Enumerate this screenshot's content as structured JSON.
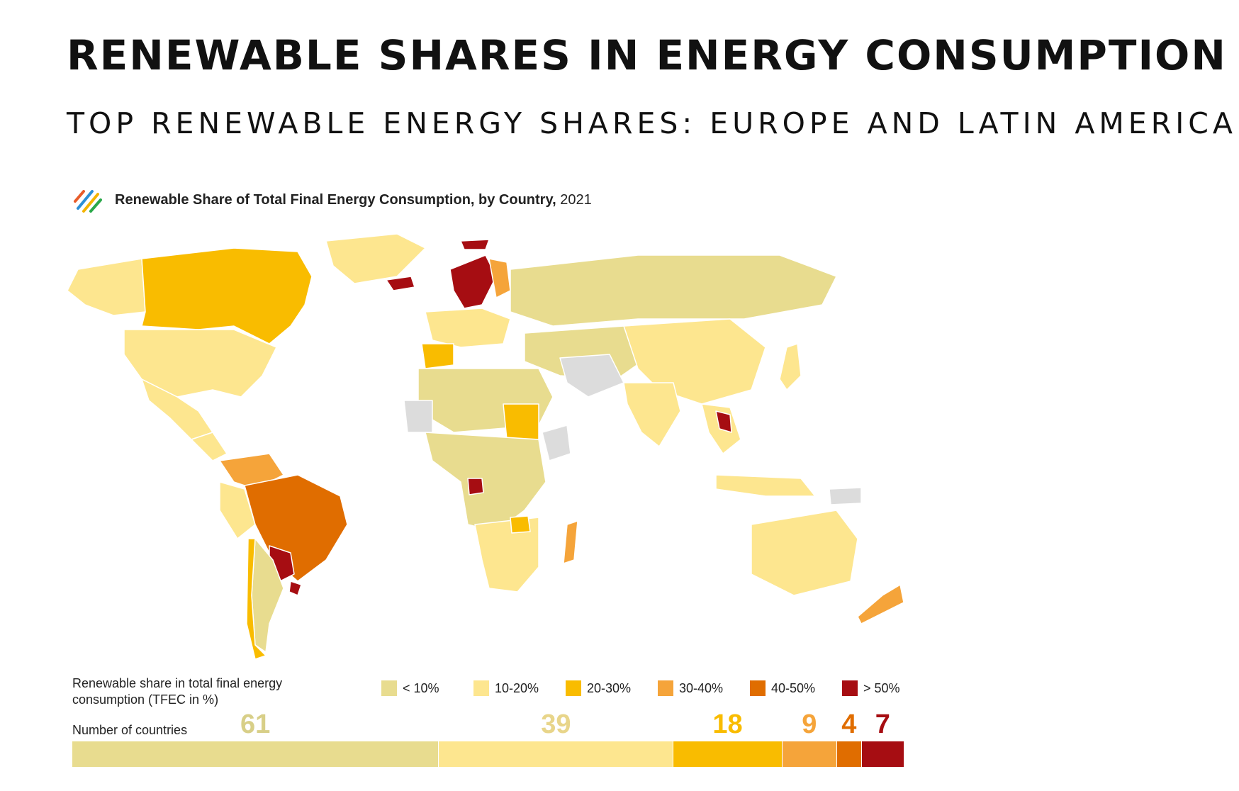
{
  "header": {
    "title": "RENEWABLE SHARES IN ENERGY CONSUMPTION",
    "subtitle": "TOP RENEWABLE ENERGY SHARES: EUROPE AND LATIN AMERICA"
  },
  "map": {
    "title": "Renewable Share of Total Final Energy Consumption, by Country,",
    "year": "2021",
    "colors": {
      "lt10": "#e8dc8f",
      "10to20": "#fde68f",
      "20to30": "#f9bc00",
      "30to40": "#f5a43a",
      "40to50": "#e06d00",
      "gt50": "#a60d12",
      "nodata": "#dcdcdc"
    }
  },
  "legend": {
    "label": "Renewable share in total final energy consumption (TFEC in %)",
    "items": [
      {
        "label": "< 10%",
        "color": "#e8dc8f"
      },
      {
        "label": "10-20%",
        "color": "#fde68f"
      },
      {
        "label": "20-30%",
        "color": "#f9bc00"
      },
      {
        "label": "30-40%",
        "color": "#f5a43a"
      },
      {
        "label": "40-50%",
        "color": "#e06d00"
      },
      {
        "label": "> 50%",
        "color": "#a60d12"
      }
    ]
  },
  "counts": {
    "label": "Number of countries",
    "bins": [
      {
        "value": 61,
        "color": "#e8dc8f",
        "num_color": "#d8cf88"
      },
      {
        "value": 39,
        "color": "#fde68f",
        "num_color": "#e8d58a"
      },
      {
        "value": 18,
        "color": "#f9bc00",
        "num_color": "#f9bc00"
      },
      {
        "value": 9,
        "color": "#f5a43a",
        "num_color": "#f5a43a"
      },
      {
        "value": 4,
        "color": "#e06d00",
        "num_color": "#e06d00"
      },
      {
        "value": 7,
        "color": "#a60d12",
        "num_color": "#a60d12"
      }
    ]
  }
}
